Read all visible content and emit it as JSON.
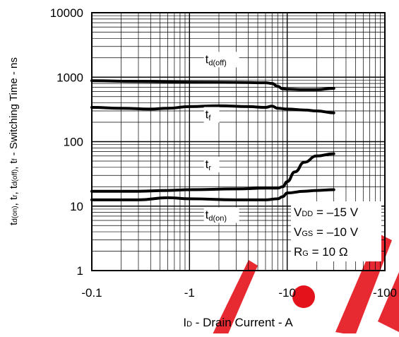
{
  "chart_data": {
    "type": "line",
    "xlabel": {
      "prefix": "I",
      "sub": "D",
      "rest": " - Drain Current - A"
    },
    "ylabel": [
      {
        "t": "t",
        "s": "d(on)"
      },
      {
        "t": ", t",
        "s": "r"
      },
      {
        "t": ", t",
        "s": "d(off)"
      },
      {
        "t": ", t",
        "s": "f"
      },
      {
        "t": " - Switching Time - ns",
        "s": ""
      }
    ],
    "x_scale": "log",
    "y_scale": "log",
    "x_reversed_sign": true,
    "xlim": [
      -0.1,
      -30
    ],
    "ylim": [
      1,
      10000
    ],
    "x_ticks": [
      -0.1,
      -1,
      -10,
      -100
    ],
    "x_tick_labels": [
      "-0.1",
      "-1",
      "-10",
      "-100"
    ],
    "y_ticks": [
      1,
      10,
      100,
      1000,
      10000
    ],
    "y_tick_labels": [
      "1",
      "10",
      "100",
      "1000",
      "10000"
    ],
    "grid": true,
    "series": [
      {
        "name": "td(off)",
        "label": {
          "t": "t",
          "s": "d(off)"
        },
        "x": [
          -0.1,
          -0.3,
          -1,
          -3,
          -6,
          -7,
          -8,
          -9,
          -10,
          -15,
          -20,
          -30
        ],
        "y": [
          880,
          860,
          840,
          830,
          820,
          800,
          720,
          660,
          650,
          640,
          640,
          670
        ]
      },
      {
        "name": "tf",
        "label": {
          "t": "t",
          "s": "f"
        },
        "x": [
          -0.1,
          -0.2,
          -0.4,
          -0.6,
          -1,
          -2,
          -4,
          -6,
          -7,
          -8,
          -10,
          -15,
          -20,
          -30
        ],
        "y": [
          340,
          330,
          320,
          330,
          350,
          360,
          350,
          340,
          355,
          330,
          320,
          310,
          300,
          280
        ]
      },
      {
        "name": "tr",
        "label": {
          "t": "t",
          "s": "r"
        },
        "x": [
          -0.1,
          -0.3,
          -0.6,
          -1,
          -3,
          -6,
          -8,
          -9,
          -10,
          -12,
          -15,
          -20,
          -30
        ],
        "y": [
          17,
          17,
          17.5,
          18,
          18.5,
          19,
          19,
          20,
          24,
          34,
          48,
          60,
          65
        ]
      },
      {
        "name": "td(on)",
        "label": {
          "t": "t",
          "s": "d(on)"
        },
        "x": [
          -0.1,
          -0.3,
          -0.6,
          -1,
          -3,
          -6,
          -8,
          -9,
          -10,
          -15,
          -20,
          -30
        ],
        "y": [
          12.5,
          12.5,
          13.5,
          13,
          12.5,
          12.5,
          13,
          14,
          16,
          17,
          17.5,
          18
        ]
      }
    ],
    "annotations": [
      {
        "pre": "V",
        "sub": "DD",
        "post": " = –15 V"
      },
      {
        "pre": "V",
        "sub": "GS",
        "post": " = –10 V"
      },
      {
        "pre": "R",
        "sub": "G",
        "post": " = 10 Ω"
      }
    ]
  },
  "colors": {
    "line": "#000000",
    "grid": "#000000",
    "watermark": "#e4121b"
  }
}
